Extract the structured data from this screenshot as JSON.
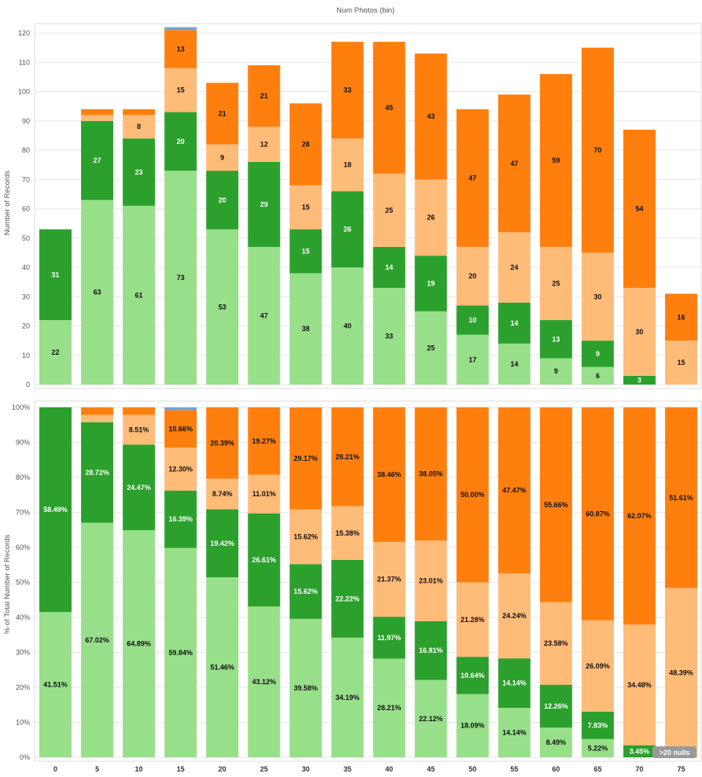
{
  "chart_data": [
    {
      "type": "bar",
      "stacked": true,
      "title": "Num Photos (bin)",
      "xlabel": "",
      "ylabel": "Number of Records",
      "ylim": [
        0,
        120
      ],
      "yticks": [
        0,
        10,
        20,
        30,
        40,
        50,
        60,
        70,
        80,
        90,
        100,
        110,
        120
      ],
      "categories": [
        "0",
        "5",
        "10",
        "15",
        "20",
        "25",
        "30",
        "35",
        "40",
        "45",
        "50",
        "55",
        "60",
        "65",
        "70",
        "75"
      ],
      "series": [
        {
          "color": "#98df8a",
          "values": [
            22,
            63,
            61,
            73,
            53,
            47,
            38,
            40,
            33,
            25,
            17,
            14,
            9,
            6,
            0,
            0
          ],
          "labels": [
            "22",
            "63",
            "61",
            "73",
            "53",
            "47",
            "38",
            "40",
            "33",
            "25",
            "17",
            "14",
            "9",
            "6",
            "",
            ""
          ]
        },
        {
          "color": "#2ca02c",
          "values": [
            31,
            27,
            23,
            20,
            20,
            29,
            15,
            26,
            14,
            19,
            10,
            14,
            13,
            9,
            3,
            0
          ],
          "labels": [
            "31",
            "27",
            "23",
            "20",
            "20",
            "29",
            "15",
            "26",
            "14",
            "19",
            "10",
            "14",
            "13",
            "9",
            "3",
            ""
          ]
        },
        {
          "color": "#ffbb78",
          "values": [
            0,
            2,
            8,
            15,
            9,
            12,
            15,
            18,
            25,
            26,
            20,
            24,
            25,
            30,
            30,
            15
          ],
          "labels": [
            "",
            "",
            "8",
            "15",
            "9",
            "12",
            "15",
            "18",
            "25",
            "26",
            "20",
            "24",
            "25",
            "30",
            "30",
            "15"
          ]
        },
        {
          "color": "#ff7f0e",
          "values": [
            0,
            2,
            2,
            13,
            21,
            21,
            28,
            33,
            45,
            43,
            47,
            47,
            59,
            70,
            54,
            16
          ],
          "labels": [
            "",
            "",
            "",
            "13",
            "21",
            "21",
            "28",
            "33",
            "45",
            "43",
            "47",
            "47",
            "59",
            "70",
            "54",
            "16"
          ]
        },
        {
          "color": "#7b9fcf",
          "values": [
            0,
            0,
            0,
            1,
            0,
            0,
            0,
            0,
            0,
            0,
            0,
            0,
            0,
            0,
            0,
            0
          ],
          "labels": [
            "",
            "",
            "",
            "",
            "",
            "",
            "",
            "",
            "",
            "",
            "",
            "",
            "",
            "",
            "",
            ""
          ]
        }
      ]
    },
    {
      "type": "bar",
      "stacked": true,
      "xlabel": "",
      "ylabel": "% of Total Number of Records",
      "ylim": [
        0,
        100
      ],
      "yticks": [
        "0%",
        "10%",
        "20%",
        "30%",
        "40%",
        "50%",
        "60%",
        "70%",
        "80%",
        "90%",
        "100%"
      ],
      "categories": [
        "0",
        "5",
        "10",
        "15",
        "20",
        "25",
        "30",
        "35",
        "40",
        "45",
        "50",
        "55",
        "60",
        "65",
        "70",
        "75"
      ],
      "series": [
        {
          "color": "#98df8a",
          "values": [
            41.51,
            67.02,
            64.89,
            59.84,
            51.46,
            43.12,
            39.58,
            34.19,
            28.21,
            22.12,
            18.09,
            14.14,
            8.49,
            5.22,
            0,
            0
          ],
          "labels": [
            "41.51%",
            "67.02%",
            "64.89%",
            "59.84%",
            "51.46%",
            "43.12%",
            "39.58%",
            "34.19%",
            "28.21%",
            "22.12%",
            "18.09%",
            "14.14%",
            "8.49%",
            "5.22%",
            "",
            ""
          ]
        },
        {
          "color": "#2ca02c",
          "values": [
            58.49,
            28.72,
            24.47,
            16.39,
            19.42,
            26.61,
            15.62,
            22.22,
            11.97,
            16.81,
            10.64,
            14.14,
            12.26,
            7.83,
            3.45,
            0
          ],
          "labels": [
            "58.49%",
            "28.72%",
            "24.47%",
            "16.39%",
            "19.42%",
            "26.61%",
            "15.62%",
            "22.22%",
            "11.97%",
            "16.81%",
            "10.64%",
            "14.14%",
            "12.26%",
            "7.83%",
            "3.45%",
            ""
          ]
        },
        {
          "color": "#ffbb78",
          "values": [
            0,
            2.13,
            8.51,
            12.3,
            8.74,
            11.01,
            15.62,
            15.38,
            21.37,
            23.01,
            21.28,
            24.24,
            23.58,
            26.09,
            34.48,
            48.39
          ],
          "labels": [
            "",
            "",
            "8.51%",
            "12.30%",
            "8.74%",
            "11.01%",
            "15.62%",
            "15.38%",
            "21.37%",
            "23.01%",
            "21.28%",
            "24.24%",
            "23.58%",
            "26.09%",
            "34.48%",
            "48.39%"
          ]
        },
        {
          "color": "#ff7f0e",
          "values": [
            0,
            2.13,
            2.13,
            10.66,
            20.39,
            19.27,
            29.17,
            28.21,
            38.46,
            38.05,
            50.0,
            47.47,
            55.66,
            60.87,
            62.07,
            51.61
          ],
          "labels": [
            "",
            "",
            "",
            "10.66%",
            "20.39%",
            "19.27%",
            "29.17%",
            "28.21%",
            "38.46%",
            "38.05%",
            "50.00%",
            "47.47%",
            "55.66%",
            "60.87%",
            "62.07%",
            "51.61%"
          ]
        },
        {
          "color": "#7b9fcf",
          "values": [
            0,
            0,
            0,
            0.82,
            0,
            0,
            0,
            0,
            0,
            0,
            0,
            0,
            0,
            0,
            0,
            0
          ],
          "labels": [
            "",
            "",
            "",
            "",
            "",
            "",
            "",
            "",
            "",
            "",
            "",
            "",
            "",
            "",
            "",
            ""
          ]
        }
      ]
    }
  ],
  "nulls_indicator": ">20 nulls",
  "colors": {
    "light_green": "#98df8a",
    "dark_green": "#2ca02c",
    "light_orange": "#ffbb78",
    "orange": "#ff7f0e",
    "blue": "#7b9fcf",
    "grid": "#e6e6e6",
    "nulls_badge": "#9a9a9a"
  }
}
